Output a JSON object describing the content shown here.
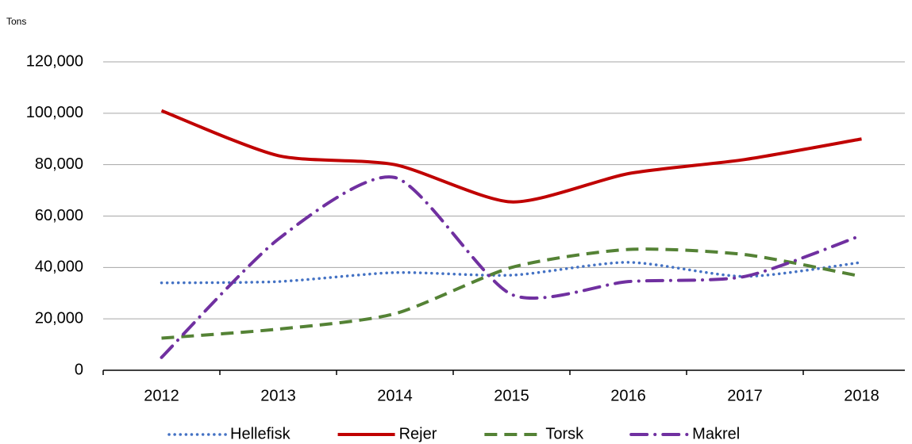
{
  "chart_data": {
    "type": "line",
    "y_label": "Tons",
    "categories": [
      "2012",
      "2013",
      "2014",
      "2015",
      "2016",
      "2017",
      "2018"
    ],
    "series": [
      {
        "name": "Hellefisk",
        "color": "#4472c4",
        "linestyle": "dotted",
        "values": [
          34000,
          34500,
          38000,
          37000,
          42000,
          36500,
          42000
        ]
      },
      {
        "name": "Rejer",
        "color": "#c00000",
        "linestyle": "solid",
        "values": [
          101000,
          83500,
          80000,
          65500,
          76500,
          82000,
          90000
        ]
      },
      {
        "name": "Torsk",
        "color": "#548235",
        "linestyle": "dashed",
        "values": [
          12500,
          16000,
          22000,
          40000,
          47000,
          45000,
          36500
        ]
      },
      {
        "name": "Makrel",
        "color": "#7030a0",
        "linestyle": "dashdot",
        "values": [
          5000,
          51000,
          75000,
          29500,
          34500,
          36500,
          52500
        ]
      }
    ],
    "ylim": [
      0,
      120000
    ],
    "yticks": [
      0,
      {
        "value": 20000,
        "label": "20,000"
      },
      {
        "value": 40000,
        "label": "40,000"
      },
      {
        "value": 60000,
        "label": "60,000"
      },
      {
        "value": 80000,
        "label": "80,000"
      },
      {
        "value": 100000,
        "label": "100,000"
      },
      {
        "value": 120000,
        "label": "120,000"
      }
    ],
    "grid": true,
    "legend": "bottom"
  }
}
